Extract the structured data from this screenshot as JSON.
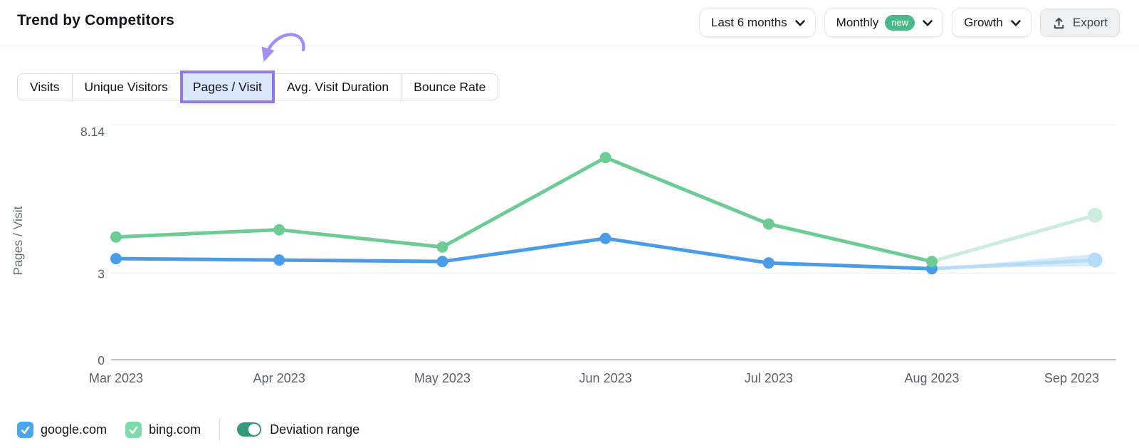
{
  "header": {
    "title": "Trend by Competitors"
  },
  "controls": {
    "period_dropdown": {
      "label": "Last 6 months"
    },
    "granularity_dropdown": {
      "label": "Monthly",
      "badge": "new"
    },
    "mode_dropdown": {
      "label": "Growth"
    },
    "export_button": {
      "label": "Export"
    }
  },
  "tabs": [
    {
      "label": "Visits",
      "active": false
    },
    {
      "label": "Unique Visitors",
      "active": false
    },
    {
      "label": "Pages / Visit",
      "active": true
    },
    {
      "label": "Avg. Visit Duration",
      "active": false
    },
    {
      "label": "Bounce Rate",
      "active": false
    }
  ],
  "annotation": {
    "arrow_color": "#a48ff0",
    "points_to": "Pages / Visit"
  },
  "chart_data": {
    "type": "line",
    "title": "",
    "xlabel": "",
    "ylabel": "Pages / Visit",
    "x": [
      "Mar 2023",
      "Apr 2023",
      "May 2023",
      "Jun 2023",
      "Jul 2023",
      "Aug 2023",
      "Sep 2023"
    ],
    "ylim": [
      0,
      8.14
    ],
    "y_ticks": [
      {
        "value": 0,
        "label": "0"
      },
      {
        "value": 3,
        "label": "3"
      },
      {
        "value": 8.14,
        "label": "8.14"
      }
    ],
    "grid": true,
    "legend_position": "bottom",
    "forecast_start_index": 5,
    "series": [
      {
        "name": "google.com",
        "color": "#4a9ce9",
        "forecast_color": "#b7dcf8",
        "band_color": "#d6ebfa",
        "deviation_band": true,
        "values": [
          3.5,
          3.45,
          3.4,
          4.2,
          3.35,
          3.15,
          3.45
        ]
      },
      {
        "name": "bing.com",
        "color": "#6fcb96",
        "forecast_color": "#cdecdd",
        "band_color": "#ddf2e7",
        "deviation_band": false,
        "values": [
          4.25,
          4.5,
          3.9,
          7.0,
          4.7,
          3.4,
          5.0
        ]
      }
    ]
  },
  "legend": {
    "items": [
      {
        "label": "google.com",
        "checked": true,
        "color": "#4aa6ed"
      },
      {
        "label": "bing.com",
        "checked": true,
        "color": "#7edca9"
      }
    ],
    "deviation_toggle": {
      "label": "Deviation range",
      "on": true,
      "color": "#339b7b"
    }
  }
}
